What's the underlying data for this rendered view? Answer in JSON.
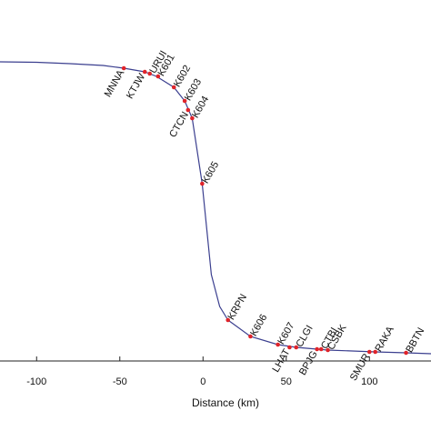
{
  "chart_data": {
    "type": "line",
    "x_label": "Distance (km)",
    "xlim": [
      -122,
      137
    ],
    "xticks": [
      -100,
      -50,
      0,
      50,
      100
    ],
    "ylim": [
      0,
      397
    ],
    "color": "#3b3f8f",
    "marker_color": "#e0242a",
    "x": [
      -122,
      -100,
      -80,
      -60,
      -47.6,
      -35,
      -28,
      -17.5,
      -11,
      -6.5,
      -0.5,
      5,
      10,
      15,
      28.5,
      45,
      56,
      75,
      103.5,
      122,
      137
    ],
    "values": [
      329,
      328.5,
      327,
      325,
      322,
      318,
      313,
      301,
      286,
      267,
      195,
      95,
      60,
      45,
      27,
      18,
      15,
      12,
      10,
      9,
      8
    ],
    "stations": {
      "names": [
        "MNNA",
        "KTJW",
        "URUI",
        "K601",
        "K602",
        "K603",
        "CTCN",
        "K604",
        "K605",
        "KRPN",
        "K606",
        "K607",
        "LHAT",
        "CLGI",
        "BPJG",
        "CTBI",
        "CSBK",
        "SMUR",
        "RAKA",
        "BBTN"
      ],
      "x": [
        -47.6,
        -35,
        -32,
        -27,
        -17.5,
        -11,
        -9,
        -6.5,
        -0.5,
        15,
        28.5,
        45,
        52,
        56,
        68.5,
        71,
        75,
        100,
        103.5,
        122
      ],
      "values": [
        322,
        318,
        316,
        313,
        301,
        286,
        276,
        267,
        195,
        45,
        27,
        18,
        15,
        15,
        13,
        13,
        12,
        10,
        10,
        9
      ]
    }
  }
}
